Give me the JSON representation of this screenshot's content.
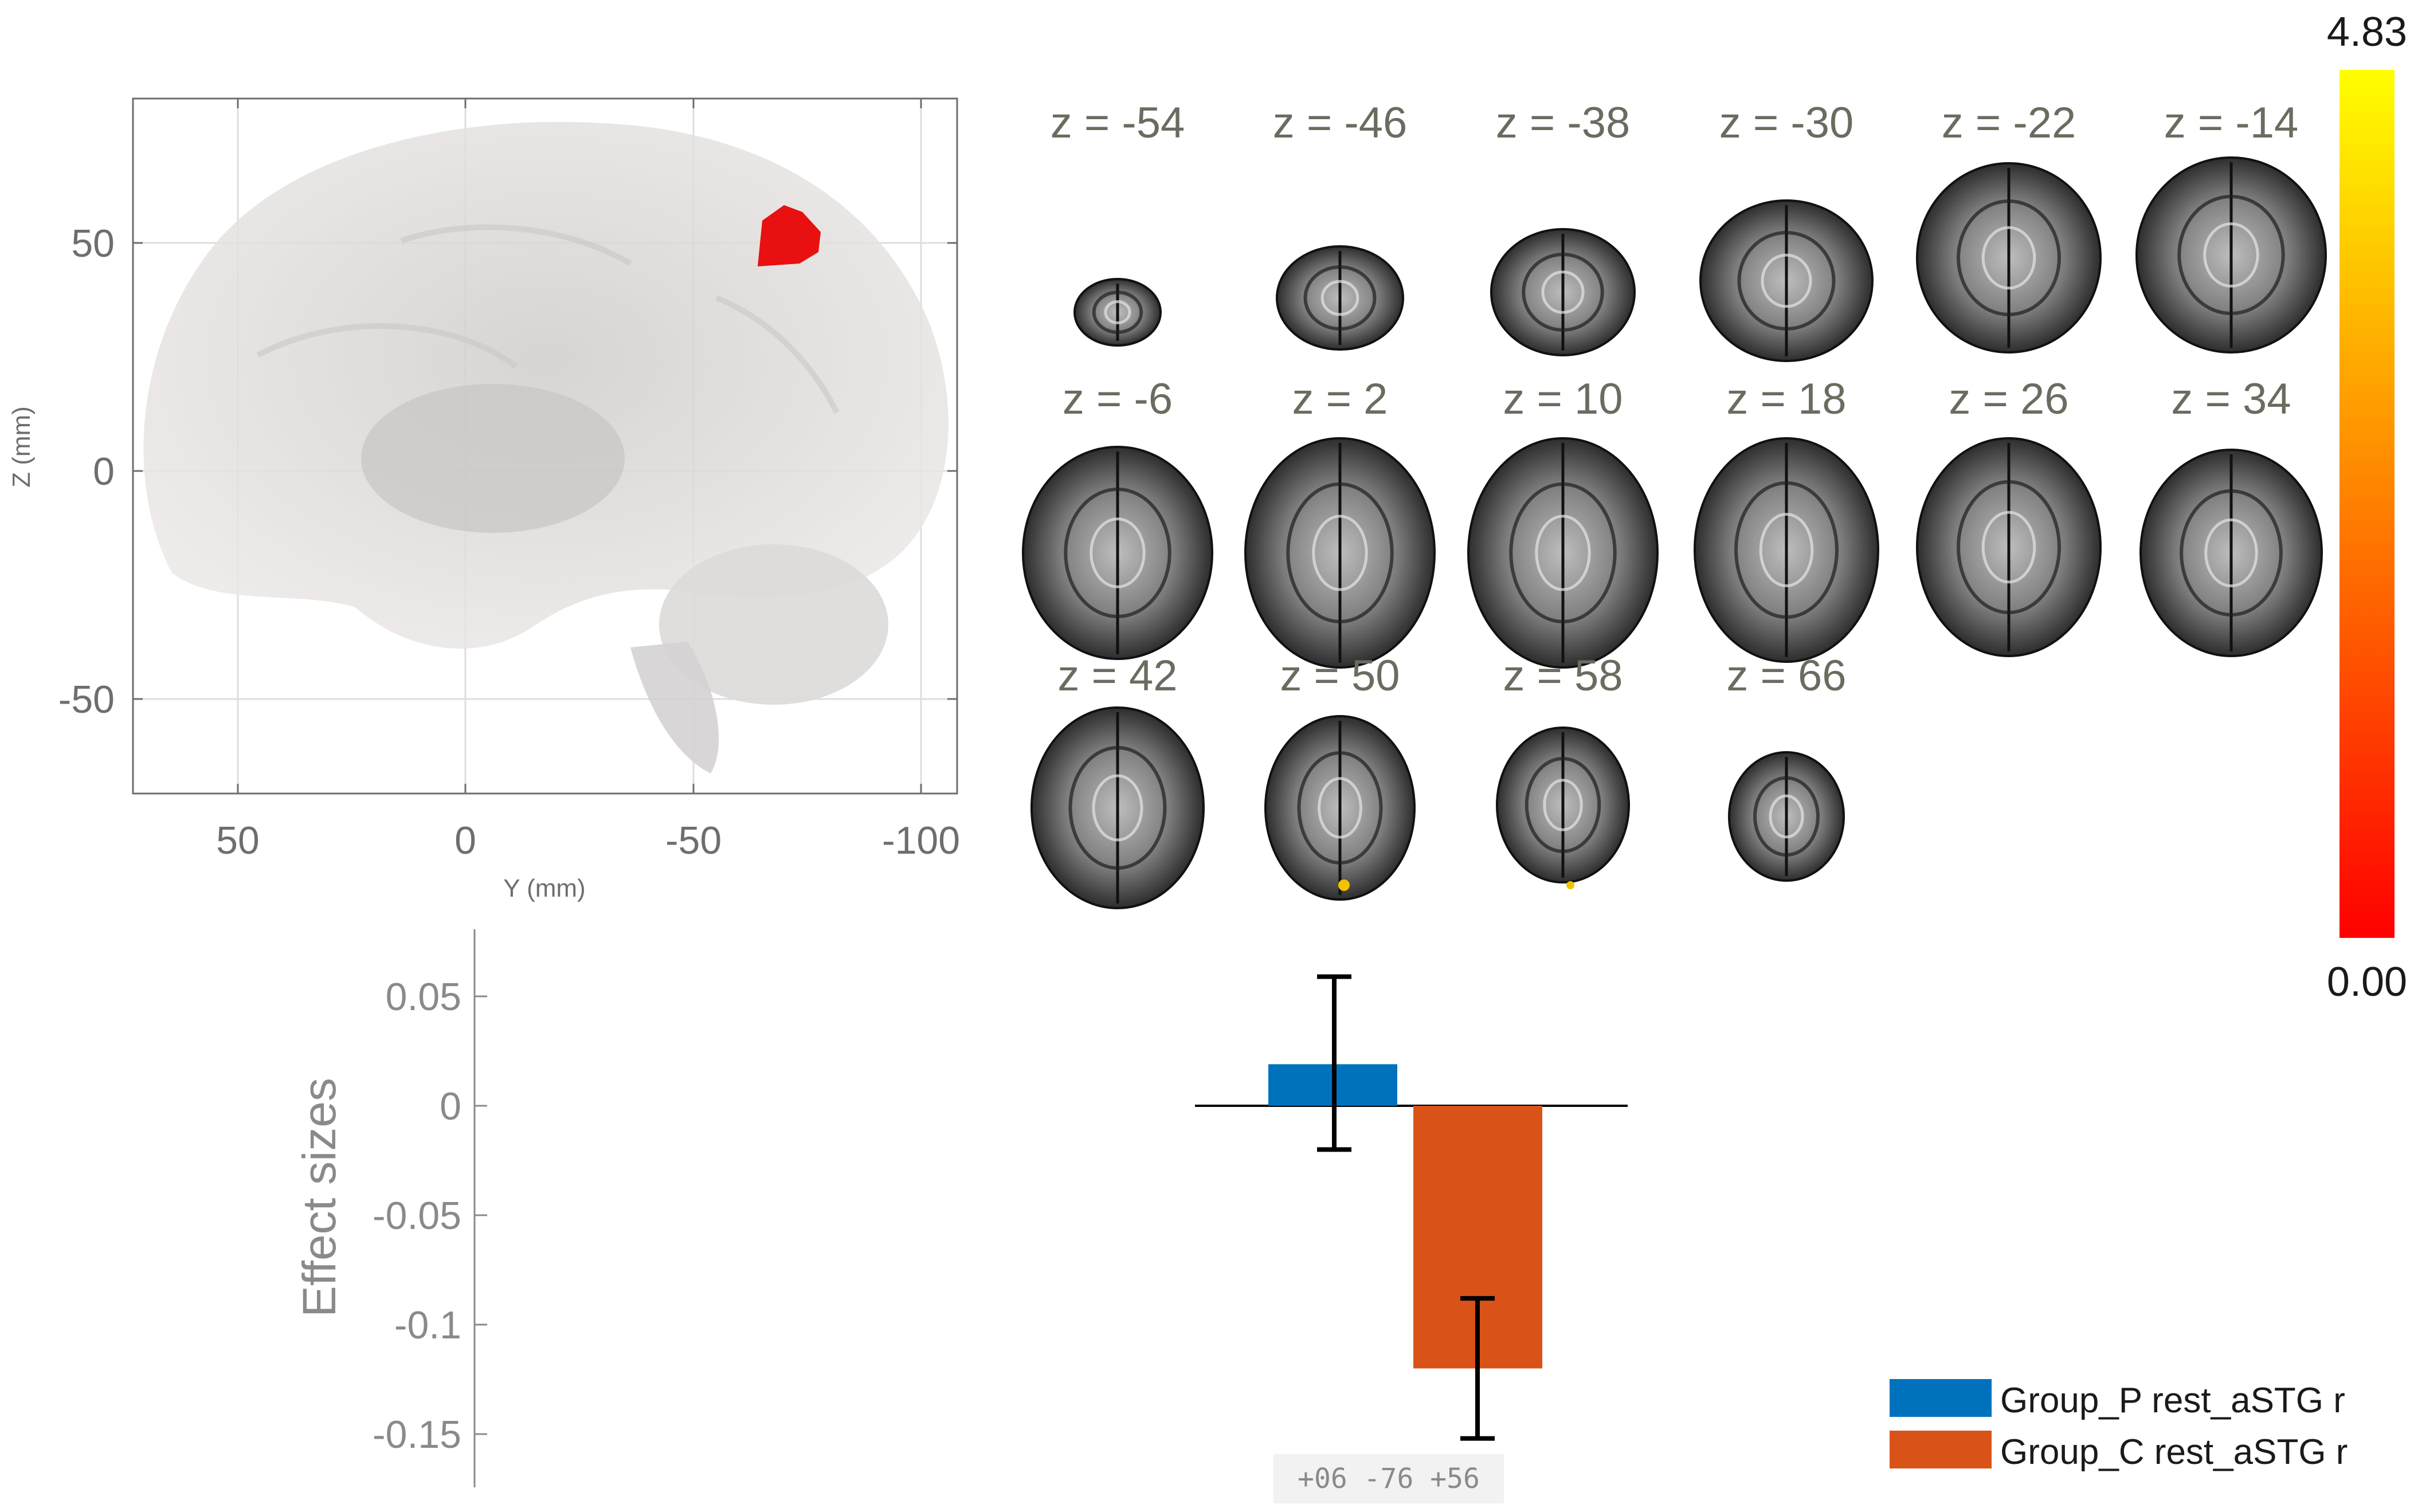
{
  "sagittal_panel": {
    "xlabel": "Y (mm)",
    "ylabel": "Z (mm)",
    "x_ticks": [
      "50",
      "0",
      "-50",
      "-100"
    ],
    "y_ticks": [
      "50",
      "0",
      "-50"
    ],
    "highlight_color": "#e81010"
  },
  "slices": {
    "labels": [
      "z = -54",
      "z = -46",
      "z = -38",
      "z = -30",
      "z = -22",
      "z = -14",
      "z = -6",
      "z = 2",
      "z = 10",
      "z = 18",
      "z = 26",
      "z = 34",
      "z = 42",
      "z = 50",
      "z = 58",
      "z = 66"
    ]
  },
  "colorbar": {
    "max_label": "4.83",
    "min_label": "0.00",
    "colors": [
      "#ff0000",
      "#ff8000",
      "#ffff00"
    ]
  },
  "chart_data": {
    "type": "bar",
    "ylabel": "Effect sizes",
    "ylim": [
      -0.17,
      0.065
    ],
    "yticks": [
      "0.05",
      "0",
      "-0.05",
      "-0.1",
      "-0.15"
    ],
    "ytick_values": [
      0.05,
      0,
      -0.05,
      -0.1,
      -0.15
    ],
    "coordinate_label": "+06 -76 +56",
    "series": [
      {
        "name": "Group_P rest_aSTG r",
        "value": 0.019,
        "error_low": -0.02,
        "error_high": 0.059,
        "color": "#0072BD"
      },
      {
        "name": "Group_C rest_aSTG r",
        "value": -0.12,
        "error_low": -0.152,
        "error_high": -0.088,
        "color": "#D95319"
      }
    ]
  }
}
